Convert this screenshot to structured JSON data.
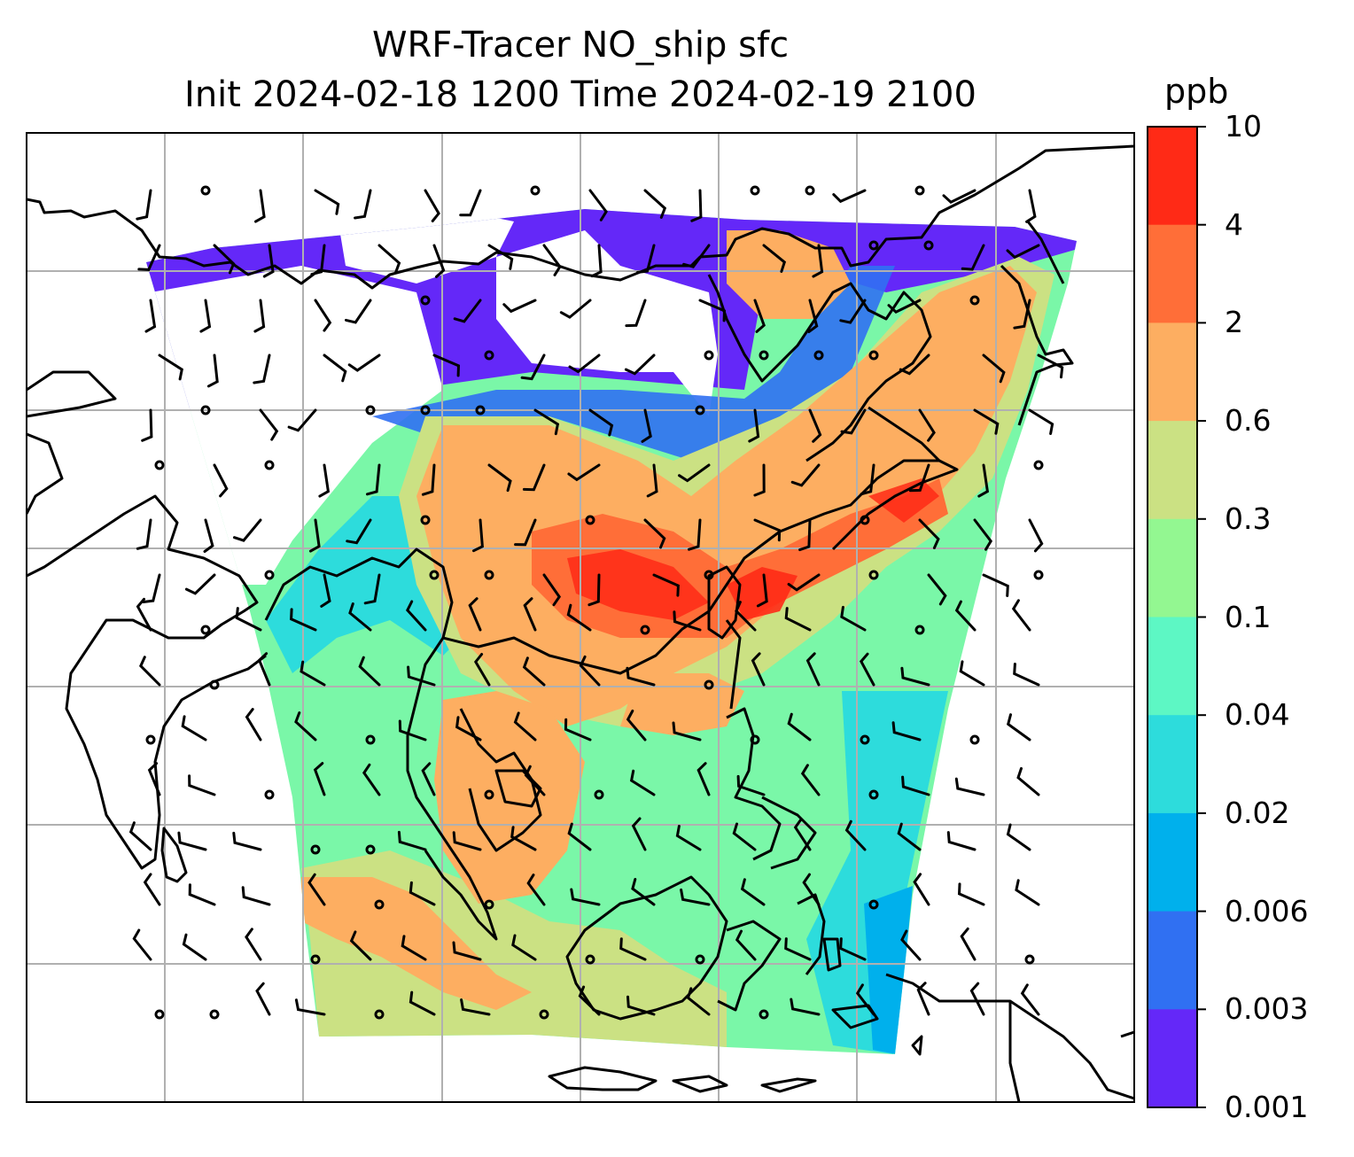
{
  "title": {
    "line1": "WRF-Tracer NO_ship sfc",
    "line2": "Init 2024-02-18 1200 Time 2024-02-19 2100"
  },
  "colorbar": {
    "unit": "ppb",
    "tick_labels": [
      "10",
      "4",
      "2",
      "0.6",
      "0.3",
      "0.1",
      "0.04",
      "0.02",
      "0.006",
      "0.003",
      "0.001"
    ],
    "colors": [
      "#ff2a16",
      "#ff6e38",
      "#fdae61",
      "#cbe183",
      "#93f791",
      "#5df7c4",
      "#2ddcdc",
      "#00b0ec",
      "#3070f2",
      "#6428f8"
    ]
  },
  "map": {
    "fields": "surface NO tracer from shipping (filled contours, ppb) with 10 m wind barbs",
    "coastline_color": "#000000",
    "gridline_color": "#b0b0b0"
  }
}
